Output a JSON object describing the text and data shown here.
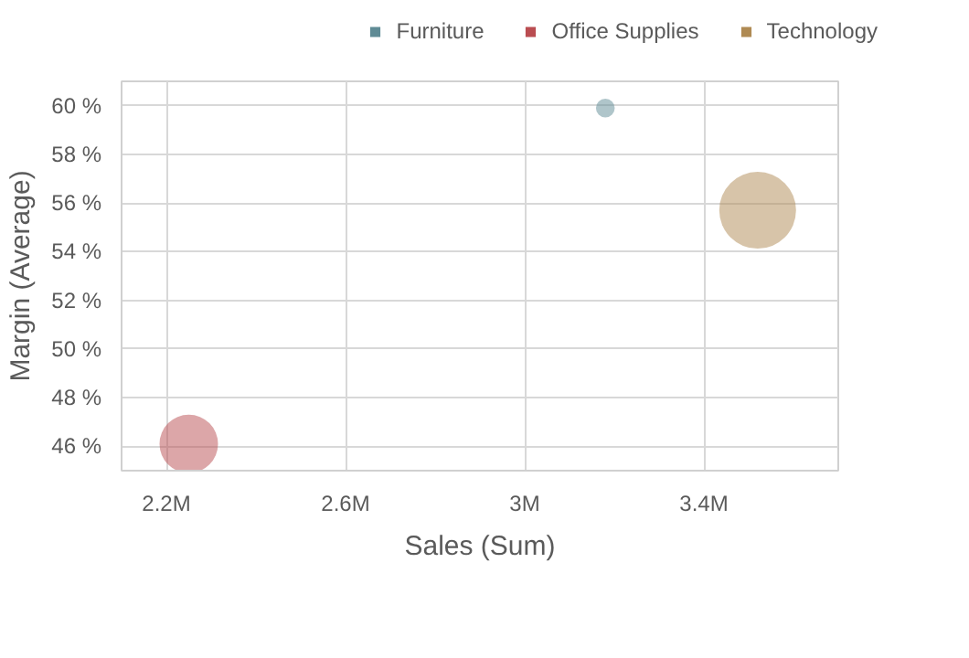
{
  "chart_data": {
    "type": "bubble",
    "xlabel": "Sales (Sum)",
    "ylabel": "Margin (Average)",
    "xlim": [
      2.1,
      3.7
    ],
    "xticks": [
      {
        "value": 2.2,
        "label": "2.2M"
      },
      {
        "value": 2.6,
        "label": "2.6M"
      },
      {
        "value": 3.0,
        "label": "3M"
      },
      {
        "value": 3.4,
        "label": "3.4M"
      }
    ],
    "ylim": [
      45.0,
      61.0
    ],
    "yticks": [
      {
        "value": 46,
        "label": "46 %"
      },
      {
        "value": 48,
        "label": "48 %"
      },
      {
        "value": 50,
        "label": "50 %"
      },
      {
        "value": 52,
        "label": "52 %"
      },
      {
        "value": 54,
        "label": "54 %"
      },
      {
        "value": 56,
        "label": "56 %"
      },
      {
        "value": 58,
        "label": "58 %"
      },
      {
        "value": 60,
        "label": "60 %"
      }
    ],
    "grid": true,
    "legend": "top right",
    "series": [
      {
        "name": "Furniture",
        "color": "#5f8b95",
        "x": [
          3.18
        ],
        "values": [
          59.9
        ],
        "sizes": [
          0.06
        ]
      },
      {
        "name": "Office Supplies",
        "color": "#ba4d51",
        "x": [
          2.25
        ],
        "values": [
          46.1
        ],
        "sizes": [
          0.58
        ]
      },
      {
        "name": "Technology",
        "color": "#af8a53",
        "x": [
          3.52
        ],
        "values": [
          55.7
        ],
        "sizes": [
          1
        ]
      }
    ]
  }
}
